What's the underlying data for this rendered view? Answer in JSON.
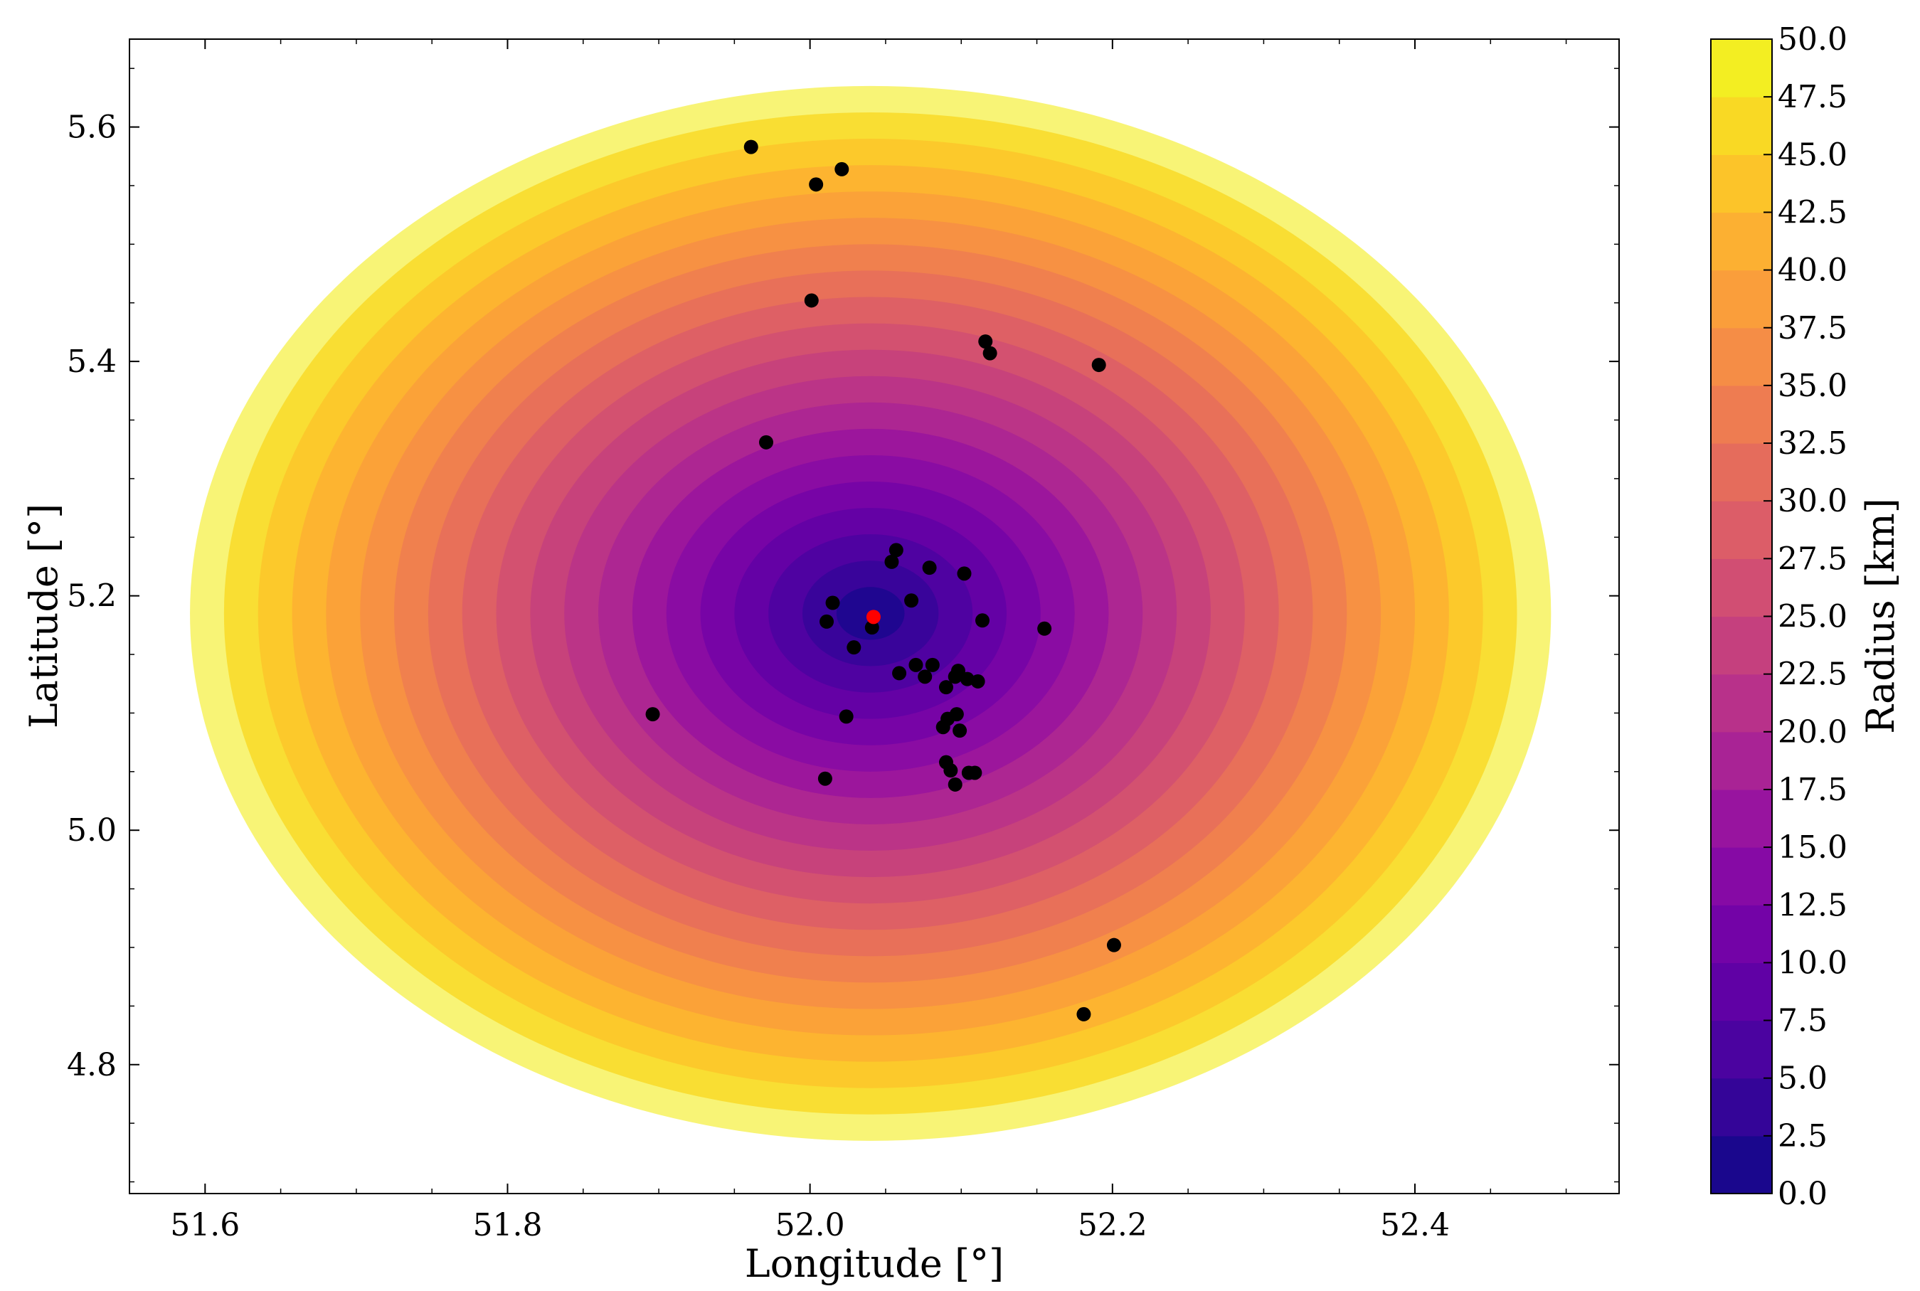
{
  "chart_data": {
    "type": "scatter",
    "xlabel": "Longitude [°]",
    "ylabel": "Latitude [°]",
    "xlim": [
      51.55,
      52.535
    ],
    "ylim": [
      4.69,
      5.675
    ],
    "x_ticks": [
      51.6,
      51.8,
      52.0,
      52.2,
      52.4
    ],
    "x_tick_labels": [
      "51.6",
      "51.8",
      "52.0",
      "52.2",
      "52.4"
    ],
    "y_ticks": [
      4.8,
      5.0,
      5.2,
      5.4,
      5.6
    ],
    "y_tick_labels": [
      "4.8",
      "5.0",
      "5.2",
      "5.4",
      "5.6"
    ],
    "grid": false,
    "contour": {
      "center": [
        52.04,
        5.185
      ],
      "x_semi_axis_at_max": 0.45,
      "y_semi_axis_at_max": 0.45,
      "levels": [
        0,
        2.5,
        5,
        7.5,
        10,
        12.5,
        15,
        17.5,
        20,
        22.5,
        25,
        27.5,
        30,
        32.5,
        35,
        37.5,
        40,
        42.5,
        45,
        47.5,
        50
      ],
      "colormap": "plasma"
    },
    "colorbar": {
      "label": "Radius [km]",
      "min": 0.0,
      "max": 50.0,
      "ticks": [
        "0.0",
        "2.5",
        "5.0",
        "7.5",
        "10.0",
        "12.5",
        "15.0",
        "17.5",
        "20.0",
        "22.5",
        "25.0",
        "27.5",
        "30.0",
        "32.5",
        "35.0",
        "37.5",
        "40.0",
        "42.5",
        "45.0",
        "47.5",
        "50.0"
      ]
    },
    "center_point": {
      "x": 52.042,
      "y": 5.182,
      "color": "#ff0000"
    },
    "points_color": "#000000",
    "points": [
      {
        "x": 51.961,
        "y": 5.583
      },
      {
        "x": 52.004,
        "y": 5.551
      },
      {
        "x": 52.021,
        "y": 5.564
      },
      {
        "x": 52.001,
        "y": 5.452
      },
      {
        "x": 52.116,
        "y": 5.417
      },
      {
        "x": 52.119,
        "y": 5.407
      },
      {
        "x": 52.191,
        "y": 5.397
      },
      {
        "x": 51.971,
        "y": 5.331
      },
      {
        "x": 52.057,
        "y": 5.239
      },
      {
        "x": 52.054,
        "y": 5.229
      },
      {
        "x": 52.079,
        "y": 5.224
      },
      {
        "x": 52.102,
        "y": 5.219
      },
      {
        "x": 52.067,
        "y": 5.196
      },
      {
        "x": 52.015,
        "y": 5.194
      },
      {
        "x": 52.011,
        "y": 5.178
      },
      {
        "x": 52.114,
        "y": 5.179
      },
      {
        "x": 52.155,
        "y": 5.172
      },
      {
        "x": 52.041,
        "y": 5.173
      },
      {
        "x": 52.029,
        "y": 5.156
      },
      {
        "x": 52.059,
        "y": 5.134
      },
      {
        "x": 52.07,
        "y": 5.141
      },
      {
        "x": 52.076,
        "y": 5.131
      },
      {
        "x": 52.081,
        "y": 5.141
      },
      {
        "x": 52.09,
        "y": 5.122
      },
      {
        "x": 52.098,
        "y": 5.136
      },
      {
        "x": 52.096,
        "y": 5.131
      },
      {
        "x": 52.104,
        "y": 5.129
      },
      {
        "x": 52.111,
        "y": 5.127
      },
      {
        "x": 51.896,
        "y": 5.099
      },
      {
        "x": 52.024,
        "y": 5.097
      },
      {
        "x": 52.091,
        "y": 5.095
      },
      {
        "x": 52.097,
        "y": 5.099
      },
      {
        "x": 52.088,
        "y": 5.088
      },
      {
        "x": 52.099,
        "y": 5.085
      },
      {
        "x": 52.09,
        "y": 5.058
      },
      {
        "x": 52.093,
        "y": 5.051
      },
      {
        "x": 52.105,
        "y": 5.049
      },
      {
        "x": 52.109,
        "y": 5.049
      },
      {
        "x": 52.096,
        "y": 5.039
      },
      {
        "x": 52.01,
        "y": 5.044
      },
      {
        "x": 52.201,
        "y": 4.902
      },
      {
        "x": 52.181,
        "y": 4.843
      }
    ]
  }
}
